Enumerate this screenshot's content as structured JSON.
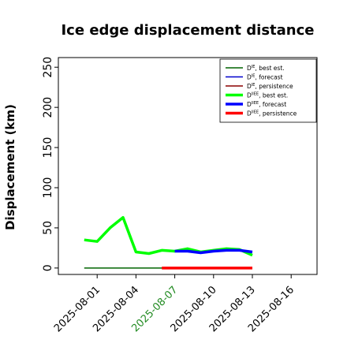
{
  "chart_data": {
    "type": "line",
    "title": "Ice edge displacement distance",
    "xlabel": "",
    "ylabel": "Displacement (km)",
    "x_ticks": [
      "2025-08-01",
      "2025-08-04",
      "2025-08-07",
      "2025-08-10",
      "2025-08-13",
      "2025-08-16"
    ],
    "highlight_tick": "2025-08-07",
    "highlight_color": "#228b22",
    "xlim": [
      "2025-07-29",
      "2025-08-18"
    ],
    "ylim": [
      -8,
      262
    ],
    "y_ticks": [
      0,
      50,
      100,
      150,
      200,
      250
    ],
    "grid": false,
    "legend_position": "top-right",
    "series": [
      {
        "name": "D^IE, best est.",
        "name_main": "D",
        "name_sup": "IE",
        "name_rest": ", best est.",
        "color": "#006400",
        "width": 1.5,
        "x": [
          "2025-07-31",
          "2025-08-01",
          "2025-08-02",
          "2025-08-03",
          "2025-08-04",
          "2025-08-05",
          "2025-08-06",
          "2025-08-07"
        ],
        "values": [
          0,
          0,
          0,
          0,
          0,
          0,
          0,
          0
        ]
      },
      {
        "name": "D^IE, forecast",
        "name_main": "D",
        "name_sup": "IE",
        "name_rest": ", forecast",
        "color": "#0000cd",
        "width": 1.5,
        "x": [],
        "values": []
      },
      {
        "name": "D^IE, persistence",
        "name_main": "D",
        "name_sup": "IE",
        "name_rest": ", persistence",
        "color": "#8b0000",
        "width": 1.5,
        "x": [],
        "values": []
      },
      {
        "name": "D^IIEE, best est.",
        "name_main": "D",
        "name_sup": "IIEE",
        "name_rest": ", best est.",
        "color": "#00ff00",
        "width": 3.5,
        "x": [
          "2025-07-31",
          "2025-08-01",
          "2025-08-02",
          "2025-08-03",
          "2025-08-04",
          "2025-08-05",
          "2025-08-06",
          "2025-08-07",
          "2025-08-08",
          "2025-08-09",
          "2025-08-10",
          "2025-08-11",
          "2025-08-12",
          "2025-08-13"
        ],
        "values": [
          35,
          33,
          50,
          63,
          20,
          18,
          22,
          21,
          24,
          20,
          22,
          24,
          23,
          16
        ]
      },
      {
        "name": "D^IIEE, forecast",
        "name_main": "D",
        "name_sup": "IIEE",
        "name_rest": ", forecast",
        "color": "#0000ff",
        "width": 3.5,
        "x": [
          "2025-08-07",
          "2025-08-08",
          "2025-08-09",
          "2025-08-10",
          "2025-08-11",
          "2025-08-12",
          "2025-08-13"
        ],
        "values": [
          21,
          21,
          19,
          21,
          22,
          22,
          20
        ]
      },
      {
        "name": "D^IIEE, persistence",
        "name_main": "D",
        "name_sup": "IIEE",
        "name_rest": ", persistence",
        "color": "#ff0000",
        "width": 3.5,
        "x": [
          "2025-08-06",
          "2025-08-07",
          "2025-08-08",
          "2025-08-09",
          "2025-08-10",
          "2025-08-11",
          "2025-08-12",
          "2025-08-13"
        ],
        "values": [
          0,
          0,
          0,
          0,
          0,
          0,
          0,
          0
        ]
      }
    ]
  }
}
